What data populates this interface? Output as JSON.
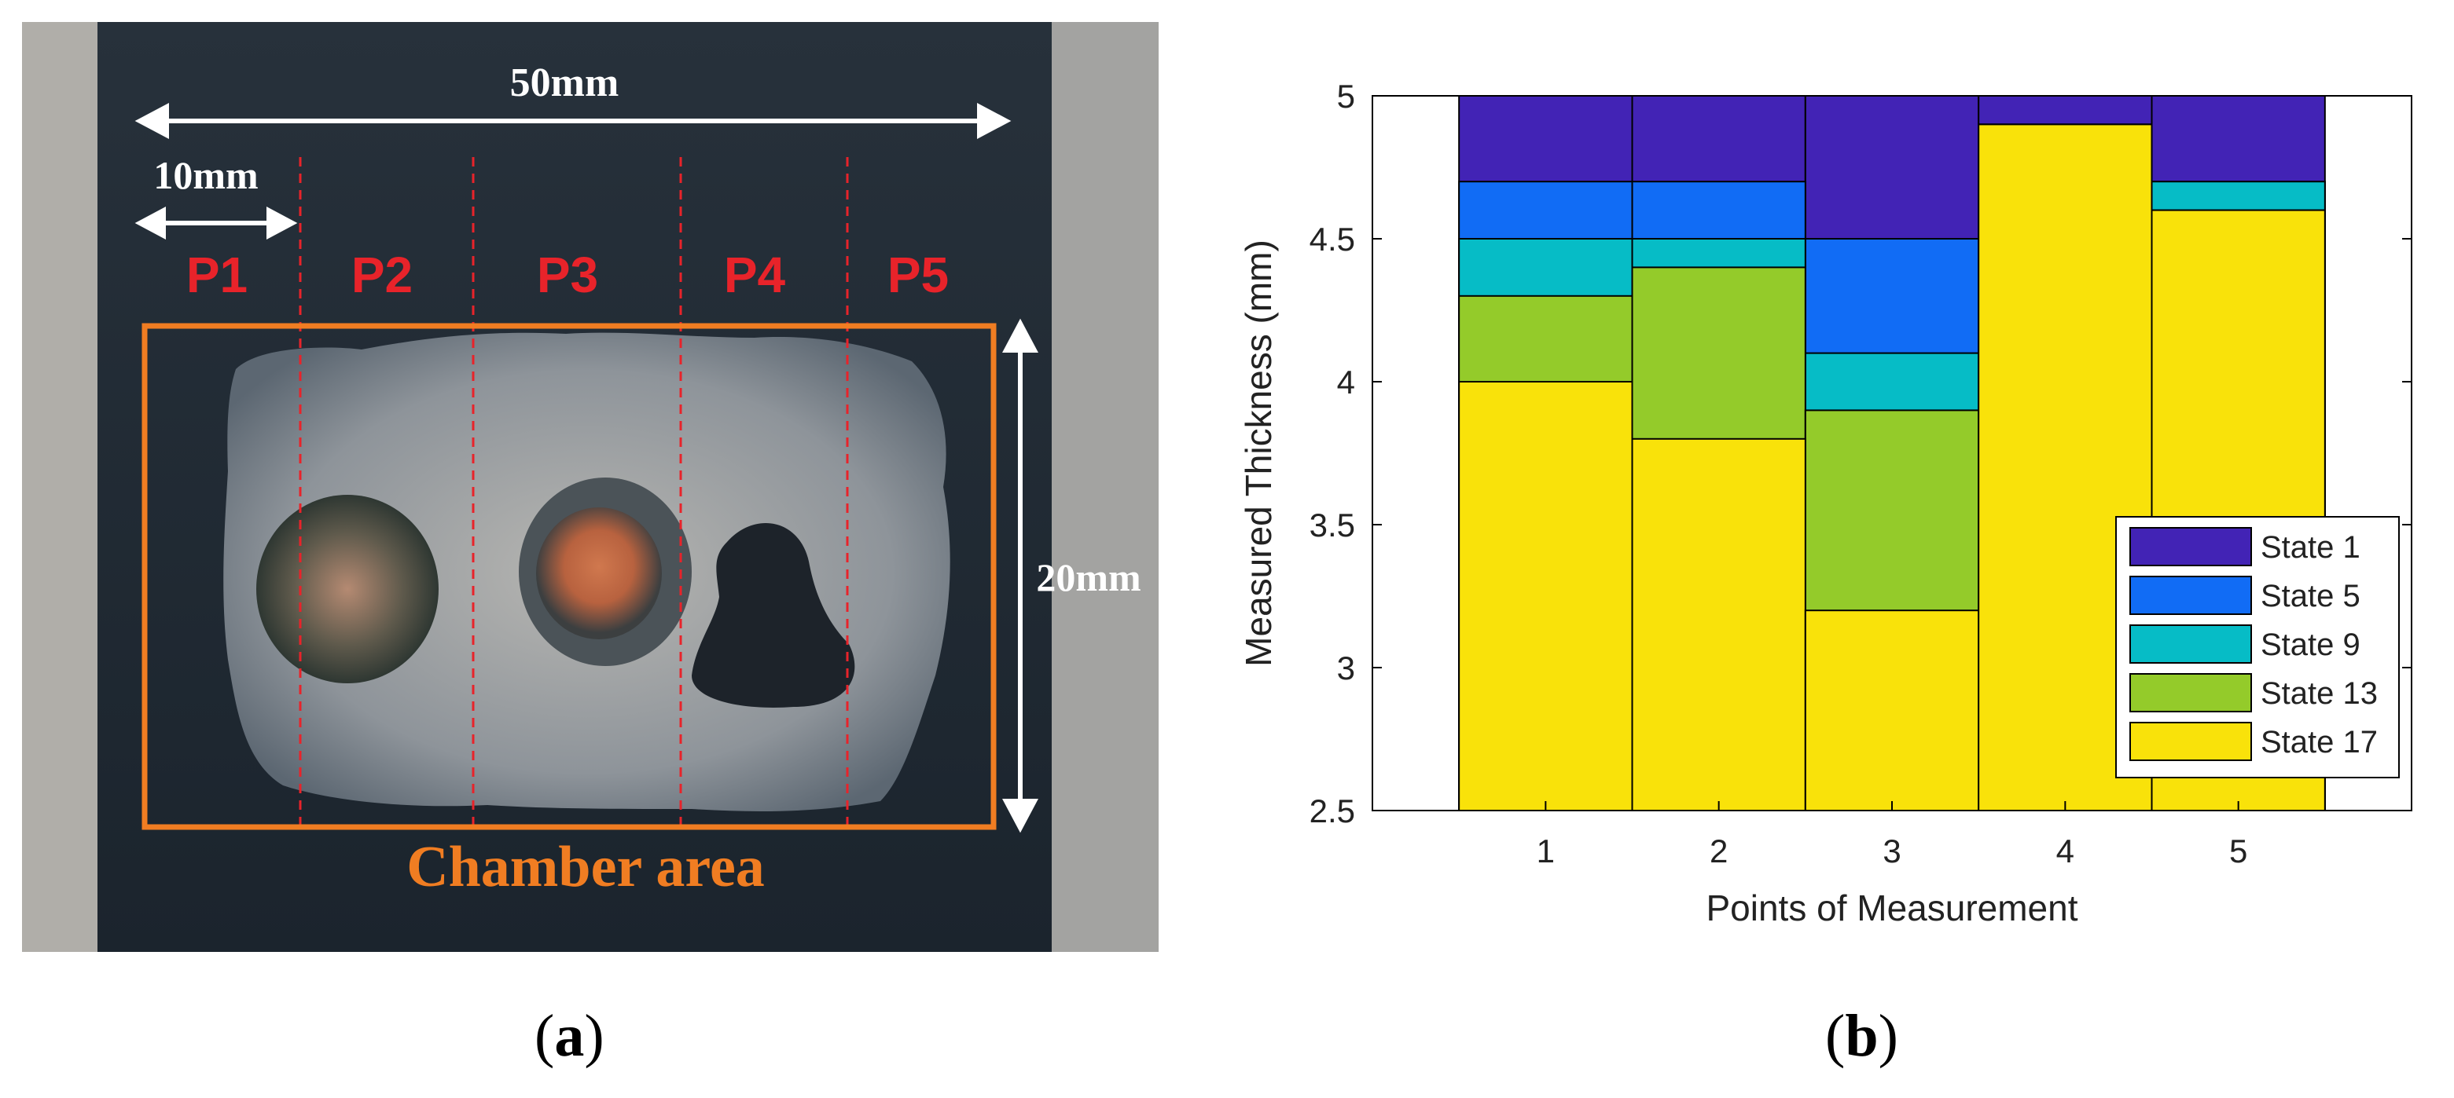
{
  "photo": {
    "caption_letter": "a",
    "dim_width": "50mm",
    "dim_pitch": "10mm",
    "dim_height": "20mm",
    "points": [
      "P1",
      "P2",
      "P3",
      "P4",
      "P5"
    ],
    "area_label": "Chamber area",
    "colors": {
      "points": "#e8232a",
      "area": "#f07d22",
      "dims": "#ffffff"
    }
  },
  "chart_caption_letter": "b",
  "chart_data": {
    "type": "bar",
    "xlabel": "Points of Measurement",
    "ylabel": "Measured Thickness (mm)",
    "ylim": [
      2.5,
      5
    ],
    "xlim": [
      0,
      6
    ],
    "yticks": [
      2.5,
      3,
      3.5,
      4,
      4.5,
      5
    ],
    "ytick_labels": [
      "2.5",
      "3",
      "3.5",
      "4",
      "4.5",
      "5"
    ],
    "categories": [
      "1",
      "2",
      "3",
      "4",
      "5"
    ],
    "x": [
      1,
      2,
      3,
      4,
      5
    ],
    "bar_width": 1.0,
    "drawing": "overlaid bars, largest thickness drawn first",
    "legend_position": "lower-right",
    "grid": false,
    "series": [
      {
        "name": "State 1",
        "color": "#4223b5",
        "values": [
          5.0,
          5.0,
          5.0,
          5.0,
          5.0
        ]
      },
      {
        "name": "State 5",
        "color": "#116cf5",
        "values": [
          4.7,
          4.7,
          4.5,
          4.9,
          4.7
        ]
      },
      {
        "name": "State 9",
        "color": "#06bcc6",
        "values": [
          4.5,
          4.5,
          4.1,
          4.9,
          4.7
        ]
      },
      {
        "name": "State 13",
        "color": "#94cb2a",
        "values": [
          4.3,
          4.4,
          3.9,
          4.9,
          4.6
        ]
      },
      {
        "name": "State 17",
        "color": "#f9e20a",
        "values": [
          4.0,
          3.8,
          3.2,
          4.9,
          4.6
        ]
      }
    ]
  }
}
